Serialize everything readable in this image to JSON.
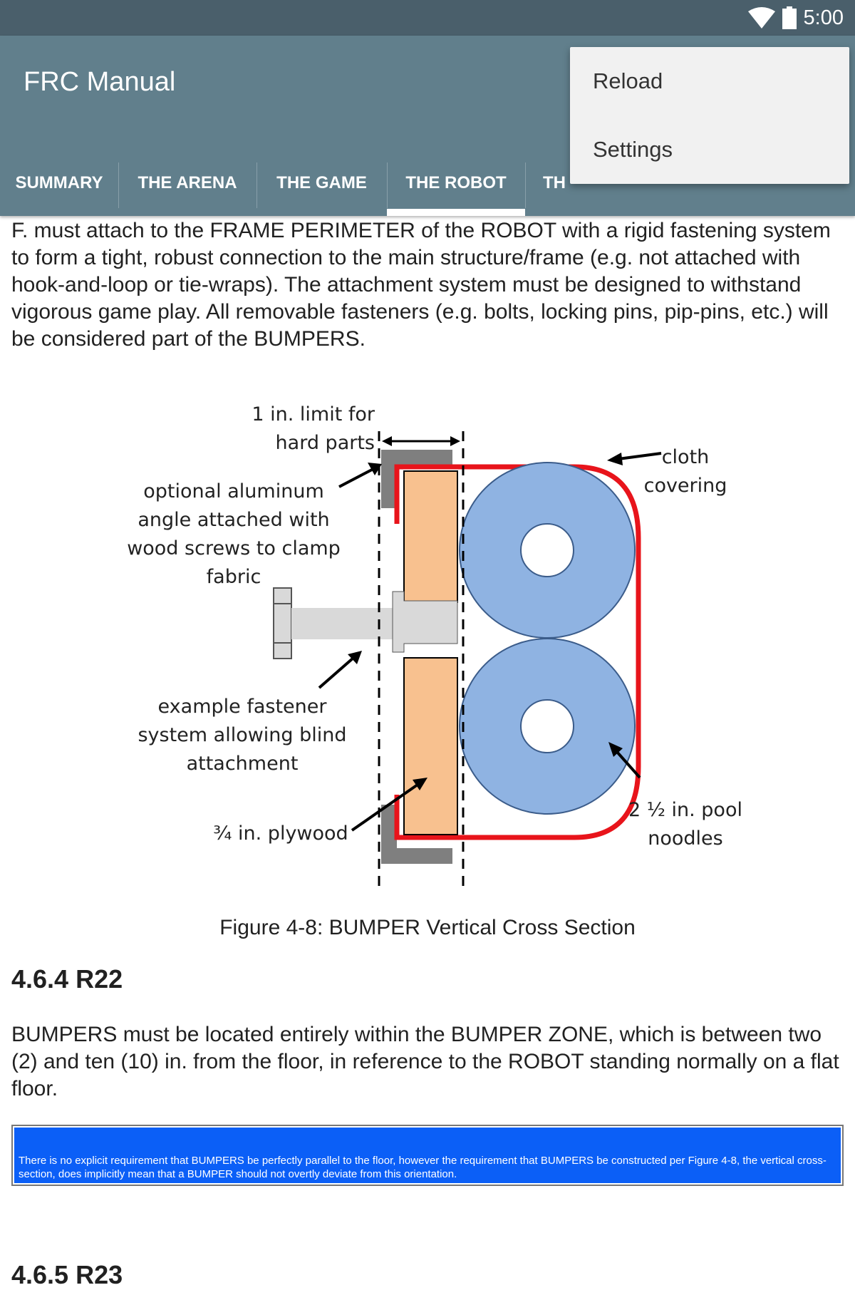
{
  "status_bar": {
    "time": "5:00",
    "icons": [
      "wifi-icon",
      "battery-icon"
    ]
  },
  "app_bar": {
    "title": "FRC Manual"
  },
  "tabs": [
    {
      "label": "SUMMARY",
      "selected": false
    },
    {
      "label": "THE ARENA",
      "selected": false
    },
    {
      "label": "THE GAME",
      "selected": false
    },
    {
      "label": "THE ROBOT",
      "selected": true
    },
    {
      "label": "TH",
      "selected": false
    }
  ],
  "overflow_menu": {
    "items": [
      {
        "label": "Reload"
      },
      {
        "label": "Settings"
      }
    ]
  },
  "content": {
    "paragraph_f": "F. must attach to the FRAME PERIMETER of the ROBOT with a rigid fastening system to form a tight, robust connection to the main structure/frame (e.g. not attached with hook-and-loop or tie-wraps).  The attachment system must be designed to withstand vigorous game play. All removable fasteners (e.g. bolts, locking pins, pip-pins, etc.) will be considered part of the BUMPERS.",
    "figure": {
      "labels": {
        "limit_line1": "1 in. limit for",
        "limit_line2": "hard parts",
        "cloth_line1": "cloth",
        "cloth_line2": "covering",
        "angle_line1": "optional aluminum",
        "angle_line2": "angle attached with",
        "angle_line3": "wood screws to clamp",
        "angle_line4": "fabric",
        "fastener_line1": "example fastener",
        "fastener_line2": "system allowing blind",
        "fastener_line3": "attachment",
        "plywood": "¾ in. plywood",
        "noodle_line1": "2 ½ in. pool",
        "noodle_line2": "noodles"
      },
      "caption": "Figure 4-8: BUMPER Vertical Cross Section",
      "colors": {
        "cloth": "#e8141b",
        "plywood": "#f8c18f",
        "noodle": "#8fb3e2",
        "aluminum": "#7f7f7f",
        "fastener": "#d9d9d9"
      }
    },
    "section_heading": "4.6.4 R22",
    "paragraph_r22": "BUMPERS must be located entirely within the BUMPER ZONE, which is between two (2) and ten (10) in. from the floor, in reference to the ROBOT standing normally on a flat floor.",
    "note": "There is no explicit requirement that BUMPERS be perfectly parallel to the floor, however the requirement that BUMPERS be constructed per Figure 4-8, the vertical cross-section, does implicitly mean that a BUMPER should not overtly deviate from this orientation.",
    "next_heading": "4.6.5 R23"
  }
}
